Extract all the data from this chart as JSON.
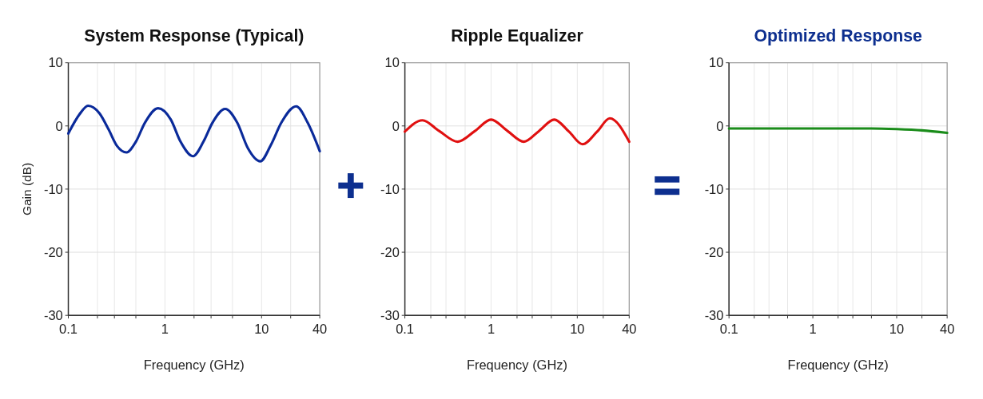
{
  "chart_data": [
    {
      "type": "line",
      "title": "System Response (Typical)",
      "xlabel": "Frequency (GHz)",
      "ylabel": "Gain (dB)",
      "log": "x",
      "grid": true,
      "xlim": [
        0.1,
        40
      ],
      "ylim": [
        -30,
        10
      ],
      "xticks": [
        0.1,
        {
          "value": 0.2,
          "label": null
        },
        {
          "value": 0.3,
          "label": null
        },
        {
          "value": 0.5,
          "label": null
        },
        1,
        {
          "value": 2,
          "label": null
        },
        {
          "value": 3,
          "label": null
        },
        {
          "value": 5,
          "label": null
        },
        10,
        {
          "value": 20,
          "label": null
        },
        40
      ],
      "yticks": [
        -30,
        -20,
        -10,
        0,
        10
      ],
      "x": [
        0.1,
        0.13,
        0.16,
        0.21,
        0.26,
        0.32,
        0.4,
        0.5,
        0.62,
        0.85,
        1.15,
        1.45,
        1.95,
        2.5,
        3.1,
        4.2,
        5.6,
        7.2,
        9.7,
        12.5,
        16,
        22.8,
        30,
        40
      ],
      "series": [
        {
          "color": "#0a2a9a",
          "values": [
            -1.2,
            1.8,
            3.2,
            2.0,
            -0.5,
            -3.2,
            -4.2,
            -2.5,
            0.5,
            2.8,
            1.0,
            -2.5,
            -4.8,
            -2.5,
            0.5,
            2.7,
            0.5,
            -3.5,
            -5.6,
            -3.0,
            0.5,
            3.1,
            0.5,
            -4.0
          ]
        }
      ]
    },
    {
      "type": "line",
      "title": "Ripple Equalizer",
      "xlabel": "Frequency (GHz)",
      "log": "x",
      "grid": true,
      "xlim": [
        0.1,
        40
      ],
      "ylim": [
        -30,
        10
      ],
      "xticks": [
        0.1,
        {
          "value": 0.2,
          "label": null
        },
        {
          "value": 0.3,
          "label": null
        },
        {
          "value": 0.5,
          "label": null
        },
        1,
        {
          "value": 2,
          "label": null
        },
        {
          "value": 3,
          "label": null
        },
        {
          "value": 5,
          "label": null
        },
        10,
        {
          "value": 20,
          "label": null
        },
        40
      ],
      "yticks": [
        -30,
        -20,
        -10,
        0,
        10
      ],
      "x": [
        0.1,
        0.16,
        0.25,
        0.41,
        0.65,
        1.0,
        1.55,
        2.4,
        3.6,
        5.4,
        8,
        11.5,
        17,
        23.8,
        40
      ],
      "series": [
        {
          "color": "#e01010",
          "values": [
            -0.9,
            0.9,
            -0.8,
            -2.5,
            -0.8,
            1.0,
            -0.8,
            -2.5,
            -0.8,
            1.0,
            -0.9,
            -2.9,
            -0.9,
            1.2,
            -2.5
          ]
        }
      ]
    },
    {
      "type": "line",
      "title": "Optimized Response",
      "xlabel": "Frequency (GHz)",
      "log": "x",
      "grid": true,
      "xlim": [
        0.1,
        40
      ],
      "ylim": [
        -30,
        10
      ],
      "xticks": [
        0.1,
        {
          "value": 0.2,
          "label": null
        },
        {
          "value": 0.3,
          "label": null
        },
        {
          "value": 0.5,
          "label": null
        },
        1,
        {
          "value": 2,
          "label": null
        },
        {
          "value": 3,
          "label": null
        },
        {
          "value": 5,
          "label": null
        },
        10,
        {
          "value": 20,
          "label": null
        },
        40
      ],
      "yticks": [
        -30,
        -20,
        -10,
        0,
        10
      ],
      "x": [
        0.1,
        1,
        5,
        10,
        20,
        40
      ],
      "series": [
        {
          "color": "#1a8c1a",
          "values": [
            -0.4,
            -0.4,
            -0.4,
            -0.5,
            -0.7,
            -1.1
          ]
        }
      ]
    }
  ]
}
